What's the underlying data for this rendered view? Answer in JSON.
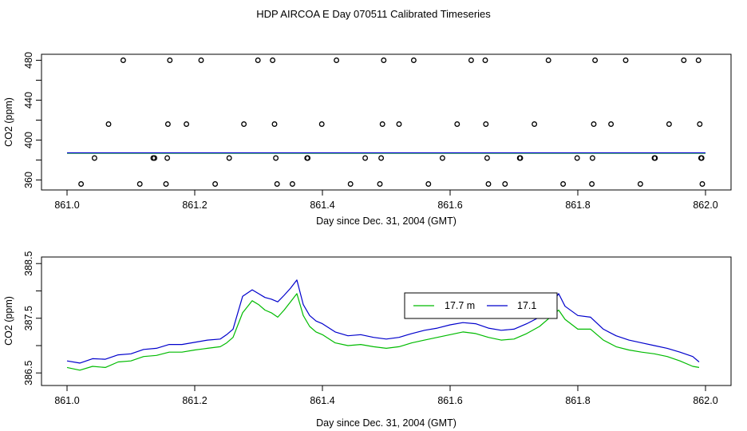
{
  "title": "HDP AIRCOA E  Day 070511  Calibrated Timeseries",
  "chart_data": [
    {
      "type": "scatter",
      "xlabel": "Day since Dec. 31, 2004 (GMT)",
      "ylabel": "CO2 (ppm)",
      "xlim": [
        860.96,
        862.04
      ],
      "ylim": [
        350,
        486
      ],
      "xticks": [
        861.0,
        861.2,
        861.4,
        861.6,
        861.8,
        862.0
      ],
      "xtick_labels": [
        "861.0",
        "861.2",
        "861.4",
        "861.6",
        "861.8",
        "862.0"
      ],
      "yticks": [
        360,
        400,
        440,
        480
      ],
      "ytick_labels": [
        "360",
        "400",
        "440",
        "480"
      ],
      "yminor_ticks": [
        380,
        420,
        460
      ],
      "points": [
        [
          861.022,
          356
        ],
        [
          861.043,
          382
        ],
        [
          861.065,
          416
        ],
        [
          861.088,
          480
        ],
        [
          861.114,
          356
        ],
        [
          861.135,
          382
        ],
        [
          861.137,
          382
        ],
        [
          861.155,
          356
        ],
        [
          861.157,
          382
        ],
        [
          861.158,
          416
        ],
        [
          861.161,
          480
        ],
        [
          861.187,
          416
        ],
        [
          861.21,
          480
        ],
        [
          861.232,
          356
        ],
        [
          861.254,
          382
        ],
        [
          861.277,
          416
        ],
        [
          861.299,
          480
        ],
        [
          861.322,
          480
        ],
        [
          861.325,
          416
        ],
        [
          861.327,
          382
        ],
        [
          861.329,
          356
        ],
        [
          861.353,
          356
        ],
        [
          861.376,
          382
        ],
        [
          861.377,
          382
        ],
        [
          861.399,
          416
        ],
        [
          861.422,
          480
        ],
        [
          861.444,
          356
        ],
        [
          861.467,
          382
        ],
        [
          861.49,
          356
        ],
        [
          861.492,
          382
        ],
        [
          861.494,
          416
        ],
        [
          861.496,
          480
        ],
        [
          861.52,
          416
        ],
        [
          861.543,
          480
        ],
        [
          861.566,
          356
        ],
        [
          861.588,
          382
        ],
        [
          861.611,
          416
        ],
        [
          861.633,
          480
        ],
        [
          861.655,
          480
        ],
        [
          861.656,
          416
        ],
        [
          861.658,
          382
        ],
        [
          861.66,
          356
        ],
        [
          861.686,
          356
        ],
        [
          861.709,
          382
        ],
        [
          861.71,
          382
        ],
        [
          861.732,
          416
        ],
        [
          861.754,
          480
        ],
        [
          861.777,
          356
        ],
        [
          861.799,
          382
        ],
        [
          861.822,
          356
        ],
        [
          861.823,
          382
        ],
        [
          861.825,
          416
        ],
        [
          861.827,
          480
        ],
        [
          861.852,
          416
        ],
        [
          861.875,
          480
        ],
        [
          861.898,
          356
        ],
        [
          861.92,
          382
        ],
        [
          861.921,
          382
        ],
        [
          861.943,
          416
        ],
        [
          861.966,
          480
        ],
        [
          861.989,
          480
        ],
        [
          861.991,
          416
        ],
        [
          861.993,
          382
        ],
        [
          861.994,
          382
        ],
        [
          861.995,
          356
        ]
      ],
      "series": [
        {
          "color": "#00bb00",
          "x": [
            861.0,
            862.0
          ],
          "y": [
            386.8,
            386.8
          ]
        },
        {
          "color": "#0000cc",
          "x": [
            861.0,
            862.0
          ],
          "y": [
            387.2,
            387.2
          ]
        }
      ]
    },
    {
      "type": "line",
      "xlabel": "Day since Dec. 31, 2004 (GMT)",
      "ylabel": "CO2 (ppm)",
      "xlim": [
        860.96,
        862.04
      ],
      "ylim": [
        386.27,
        388.62
      ],
      "xticks": [
        861.0,
        861.2,
        861.4,
        861.6,
        861.8,
        862.0
      ],
      "xtick_labels": [
        "861.0",
        "861.2",
        "861.4",
        "861.6",
        "861.8",
        "862.0"
      ],
      "yticks": [
        386.5,
        387.5,
        388.5
      ],
      "ytick_labels": [
        "386.5",
        "387.5",
        "388.5"
      ],
      "yminor_ticks": [
        387.0,
        388.0
      ],
      "legend": {
        "position": "center-right",
        "entries": [
          "17.7 m",
          "17.1"
        ]
      },
      "series": [
        {
          "name": "17.7 m",
          "color": "#00bb00",
          "x": [
            861.0,
            861.02,
            861.04,
            861.06,
            861.08,
            861.1,
            861.12,
            861.14,
            861.16,
            861.18,
            861.2,
            861.22,
            861.24,
            861.25,
            861.26,
            861.265,
            861.275,
            861.29,
            861.3,
            861.31,
            861.32,
            861.33,
            861.34,
            861.35,
            861.36,
            861.37,
            861.38,
            861.39,
            861.4,
            861.42,
            861.44,
            861.46,
            861.48,
            861.5,
            861.52,
            861.54,
            861.56,
            861.58,
            861.6,
            861.62,
            861.64,
            861.66,
            861.68,
            861.7,
            861.72,
            861.74,
            861.76,
            861.77,
            861.78,
            861.8,
            861.82,
            861.84,
            861.86,
            861.88,
            861.9,
            861.92,
            861.94,
            861.96,
            861.98,
            861.99
          ],
          "y": [
            386.6,
            386.55,
            386.62,
            386.6,
            386.7,
            386.72,
            386.8,
            386.82,
            386.88,
            386.88,
            386.92,
            386.95,
            386.98,
            387.05,
            387.15,
            387.3,
            387.6,
            387.82,
            387.75,
            387.65,
            387.6,
            387.52,
            387.65,
            387.8,
            387.95,
            387.55,
            387.35,
            387.25,
            387.2,
            387.05,
            387.0,
            387.02,
            386.98,
            386.95,
            386.98,
            387.05,
            387.1,
            387.15,
            387.2,
            387.25,
            387.22,
            387.15,
            387.1,
            387.12,
            387.22,
            387.35,
            387.55,
            387.65,
            387.48,
            387.3,
            387.3,
            387.1,
            386.98,
            386.92,
            386.88,
            386.85,
            386.8,
            386.72,
            386.62,
            386.6
          ]
        },
        {
          "name": "17.1",
          "color": "#0000cc",
          "x": [
            861.0,
            861.02,
            861.04,
            861.06,
            861.08,
            861.1,
            861.12,
            861.14,
            861.16,
            861.18,
            861.2,
            861.22,
            861.24,
            861.25,
            861.26,
            861.265,
            861.275,
            861.29,
            861.3,
            861.31,
            861.32,
            861.33,
            861.34,
            861.35,
            861.36,
            861.37,
            861.38,
            861.39,
            861.4,
            861.42,
            861.44,
            861.46,
            861.48,
            861.5,
            861.52,
            861.54,
            861.56,
            861.58,
            861.6,
            861.62,
            861.64,
            861.66,
            861.68,
            861.7,
            861.72,
            861.74,
            861.76,
            861.77,
            861.78,
            861.8,
            861.82,
            861.84,
            861.86,
            861.88,
            861.9,
            861.92,
            861.94,
            861.96,
            861.98,
            861.99
          ],
          "y": [
            386.72,
            386.68,
            386.76,
            386.75,
            386.83,
            386.85,
            386.93,
            386.95,
            387.02,
            387.02,
            387.06,
            387.1,
            387.12,
            387.2,
            387.3,
            387.5,
            387.9,
            388.02,
            387.95,
            387.88,
            387.85,
            387.8,
            387.92,
            388.05,
            388.2,
            387.75,
            387.55,
            387.45,
            387.4,
            387.25,
            387.18,
            387.2,
            387.15,
            387.12,
            387.15,
            387.22,
            387.28,
            387.32,
            387.38,
            387.42,
            387.4,
            387.32,
            387.28,
            387.3,
            387.4,
            387.52,
            387.78,
            387.95,
            387.72,
            387.55,
            387.52,
            387.3,
            387.18,
            387.1,
            387.05,
            387.0,
            386.95,
            386.88,
            386.8,
            386.7
          ]
        }
      ]
    }
  ]
}
